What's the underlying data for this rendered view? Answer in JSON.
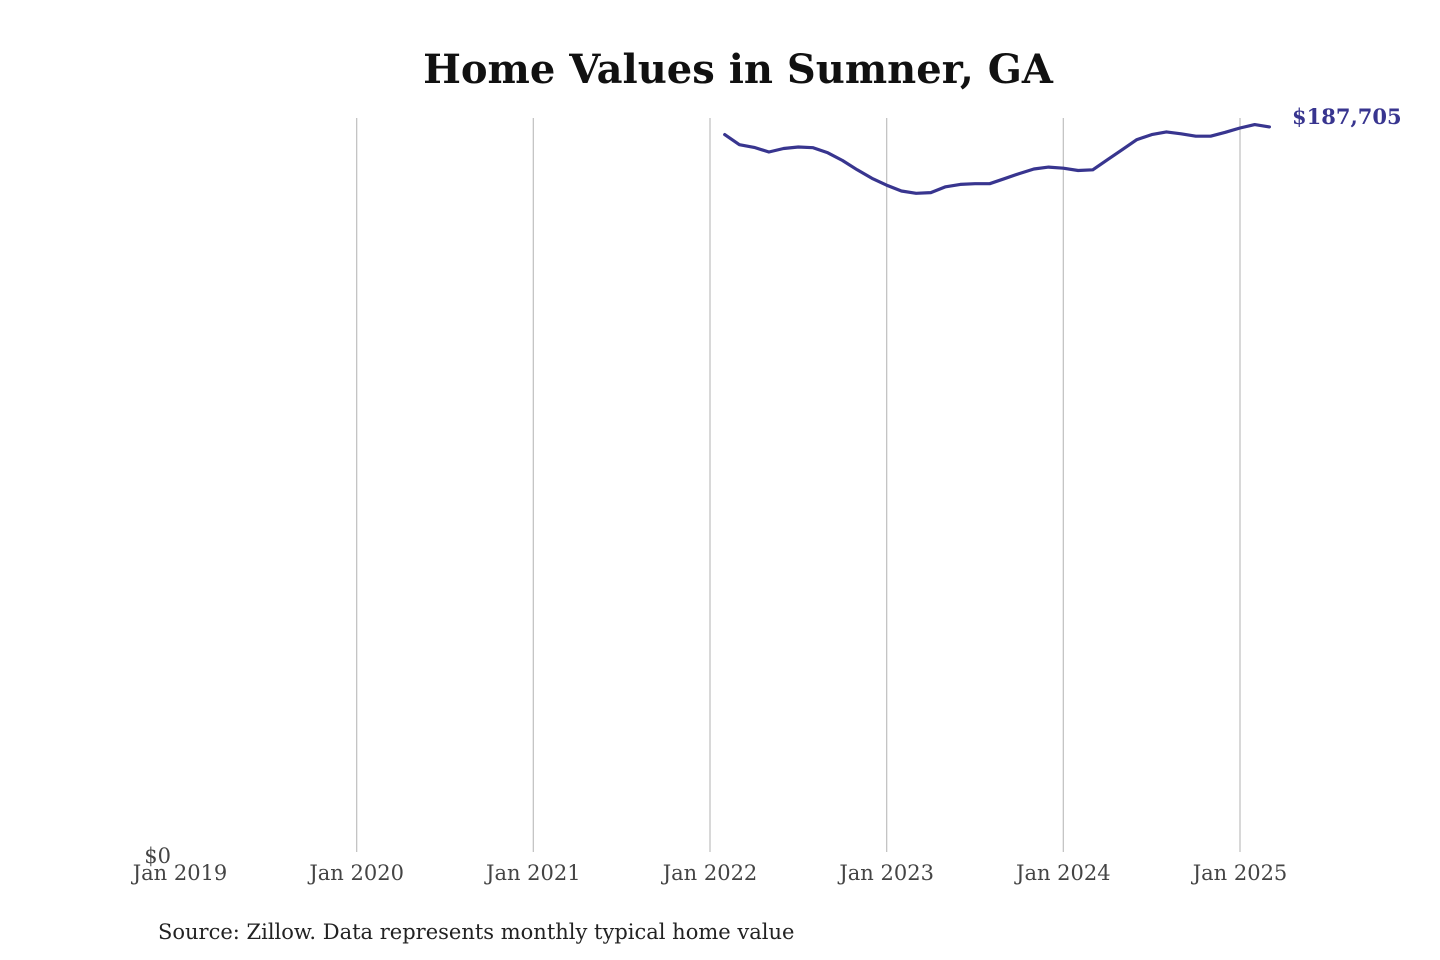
{
  "chart_data": {
    "type": "line",
    "title": "Home Values in Sumner, GA",
    "source": "Source: Zillow. Data represents monthly typical home value",
    "x_range": [
      "2019-01",
      "2025-06"
    ],
    "ylim": [
      0,
      190000
    ],
    "grid": "vertical",
    "x_ticks": [
      "Jan 2019",
      "Jan 2020",
      "Jan 2021",
      "Jan 2022",
      "Jan 2023",
      "Jan 2024",
      "Jan 2025"
    ],
    "x_tick_dates": [
      "2019-01",
      "2020-01",
      "2021-01",
      "2022-01",
      "2023-01",
      "2024-01",
      "2025-01"
    ],
    "y_ticks": [
      "$0"
    ],
    "y_tick_values": [
      0
    ],
    "series": [
      {
        "color": "#38358f",
        "end_label": "$187,705",
        "x": [
          "2022-02",
          "2022-03",
          "2022-04",
          "2022-05",
          "2022-06",
          "2022-07",
          "2022-08",
          "2022-09",
          "2022-10",
          "2022-11",
          "2022-12",
          "2023-01",
          "2023-02",
          "2023-03",
          "2023-04",
          "2023-05",
          "2023-06",
          "2023-07",
          "2023-08",
          "2023-09",
          "2023-10",
          "2023-11",
          "2023-12",
          "2024-01",
          "2024-02",
          "2024-03",
          "2024-04",
          "2024-05",
          "2024-06",
          "2024-07",
          "2024-08",
          "2024-09",
          "2024-10",
          "2024-11",
          "2024-12",
          "2025-01",
          "2025-02",
          "2025-03"
        ],
        "values": [
          185700,
          183100,
          182400,
          181200,
          182100,
          182500,
          182300,
          181000,
          179000,
          176600,
          174400,
          172600,
          171100,
          170500,
          170700,
          172200,
          172800,
          173000,
          173000,
          174300,
          175600,
          176800,
          177300,
          177000,
          176400,
          176600,
          179200,
          181800,
          184400,
          185700,
          186400,
          185900,
          185300,
          185300,
          186300,
          187400,
          188300,
          187705
        ]
      }
    ]
  }
}
